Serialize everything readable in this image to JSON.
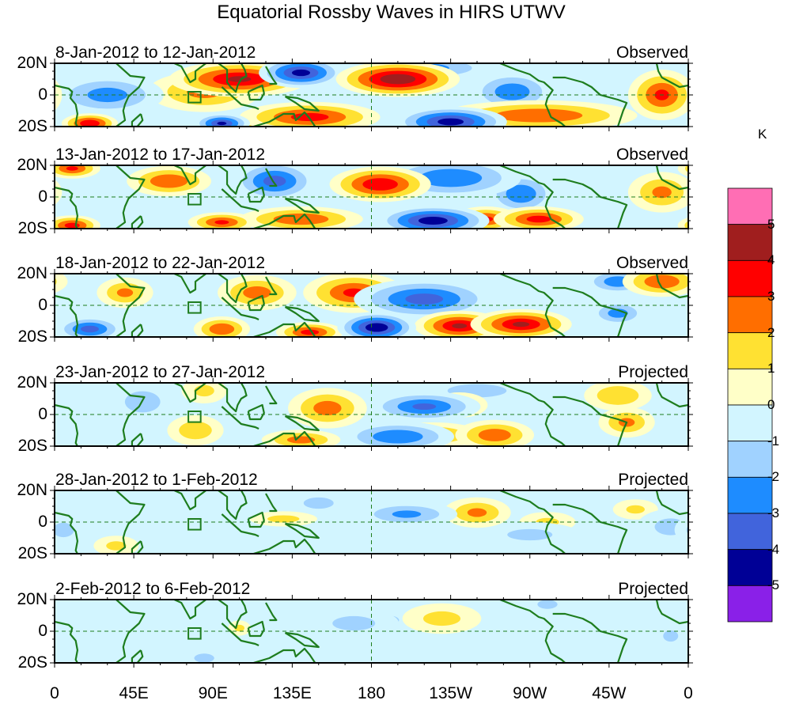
{
  "chart_data": {
    "type": "heatmap",
    "title": "Equatorial Rossby Waves in HIRS UTWV",
    "colorbar": {
      "unit": "K",
      "levels": [
        -5,
        -4,
        -3,
        -2,
        -1,
        0,
        1,
        2,
        3,
        4,
        5
      ],
      "colors": [
        "#8a20e8",
        "#000096",
        "#4164dc",
        "#1e8cff",
        "#a0d2ff",
        "#d2f5ff",
        "#ffffc8",
        "#ffe132",
        "#ff6e00",
        "#ff0000",
        "#a01e1e",
        "#ff6eb4"
      ],
      "tick_labels": [
        "5",
        "4",
        "3",
        "2",
        "1",
        "0",
        "-1",
        "-2",
        "-3",
        "-4",
        "-5"
      ]
    },
    "x_ticks": [
      "0",
      "45E",
      "90E",
      "135E",
      "180",
      "135W",
      "90W",
      "45W",
      "0"
    ],
    "x_range_deg": [
      0,
      360
    ],
    "y_ticks": [
      "20N",
      "0",
      "20S"
    ],
    "y_range_deg": [
      -20,
      20
    ],
    "overlays": [
      "coastlines",
      "equator dashed line",
      "180 meridian dashed line",
      "box near 80E"
    ],
    "line_color": "#1e7d1e",
    "panels": [
      {
        "period": "8-Jan-2012 to 12-Jan-2012",
        "kind": "Observed",
        "anomalies": [
          {
            "lon": 105,
            "lat": 10,
            "value": 4.2,
            "rx": 25,
            "ry": 7
          },
          {
            "lon": 85,
            "lat": 2,
            "value": 2.3,
            "rx": 20,
            "ry": 8
          },
          {
            "lon": 195,
            "lat": 10,
            "value": 5.0,
            "rx": 22,
            "ry": 7
          },
          {
            "lon": 140,
            "lat": 14,
            "value": -4.5,
            "rx": 15,
            "ry": 6
          },
          {
            "lon": 30,
            "lat": 0,
            "value": -2.5,
            "rx": 20,
            "ry": 8
          },
          {
            "lon": 145,
            "lat": -14,
            "value": 3.5,
            "rx": 25,
            "ry": 6
          },
          {
            "lon": 345,
            "lat": 0,
            "value": 3.2,
            "rx": 12,
            "ry": 10
          },
          {
            "lon": 275,
            "lat": -13,
            "value": 3.0,
            "rx": 35,
            "ry": 6
          },
          {
            "lon": 225,
            "lat": -17,
            "value": -4.6,
            "rx": 20,
            "ry": 6
          },
          {
            "lon": 260,
            "lat": 2,
            "value": -2.8,
            "rx": 15,
            "ry": 8
          },
          {
            "lon": 95,
            "lat": -18,
            "value": -4.2,
            "rx": 10,
            "ry": 4
          },
          {
            "lon": 20,
            "lat": -18,
            "value": 4.0,
            "rx": 10,
            "ry": 4
          },
          {
            "lon": 120,
            "lat": -18,
            "value": 3.0,
            "rx": 10,
            "ry": 4
          },
          {
            "lon": 210,
            "lat": 17,
            "value": -2.5,
            "rx": 25,
            "ry": 5
          }
        ]
      },
      {
        "period": "13-Jan-2012 to 17-Jan-2012",
        "kind": "Observed",
        "anomalies": [
          {
            "lon": 185,
            "lat": 8,
            "value": 4.0,
            "rx": 18,
            "ry": 7
          },
          {
            "lon": 65,
            "lat": 10,
            "value": 3.0,
            "rx": 15,
            "ry": 6
          },
          {
            "lon": 125,
            "lat": 10,
            "value": -3.5,
            "rx": 15,
            "ry": 8
          },
          {
            "lon": 215,
            "lat": -15,
            "value": -4.8,
            "rx": 20,
            "ry": 6
          },
          {
            "lon": 245,
            "lat": -14,
            "value": 3.2,
            "rx": 12,
            "ry": 5
          },
          {
            "lon": 275,
            "lat": -14,
            "value": 3.5,
            "rx": 16,
            "ry": 5
          },
          {
            "lon": 265,
            "lat": 2,
            "value": -3.0,
            "rx": 12,
            "ry": 8
          },
          {
            "lon": 140,
            "lat": -14,
            "value": 3.0,
            "rx": 22,
            "ry": 5
          },
          {
            "lon": 95,
            "lat": -16,
            "value": 3.2,
            "rx": 12,
            "ry": 4
          },
          {
            "lon": 225,
            "lat": 12,
            "value": -3.0,
            "rx": 25,
            "ry": 8
          },
          {
            "lon": 345,
            "lat": 3,
            "value": 2.2,
            "rx": 12,
            "ry": 8
          },
          {
            "lon": 10,
            "lat": -18,
            "value": 3.5,
            "rx": 10,
            "ry": 4
          },
          {
            "lon": 10,
            "lat": 18,
            "value": 3.2,
            "rx": 10,
            "ry": 4
          }
        ]
      },
      {
        "period": "18-Jan-2012 to 22-Jan-2012",
        "kind": "Observed",
        "anomalies": [
          {
            "lon": 170,
            "lat": 8,
            "value": 3.2,
            "rx": 18,
            "ry": 8
          },
          {
            "lon": 115,
            "lat": 8,
            "value": 2.5,
            "rx": 14,
            "ry": 7
          },
          {
            "lon": 183,
            "lat": -14,
            "value": -5.0,
            "rx": 14,
            "ry": 6
          },
          {
            "lon": 230,
            "lat": -13,
            "value": 4.2,
            "rx": 16,
            "ry": 6
          },
          {
            "lon": 265,
            "lat": -12,
            "value": 4.2,
            "rx": 18,
            "ry": 6
          },
          {
            "lon": 210,
            "lat": 4,
            "value": -3.5,
            "rx": 25,
            "ry": 8
          },
          {
            "lon": 95,
            "lat": -15,
            "value": 3.0,
            "rx": 10,
            "ry": 5
          },
          {
            "lon": 145,
            "lat": -17,
            "value": 3.5,
            "rx": 12,
            "ry": 4
          },
          {
            "lon": 40,
            "lat": 8,
            "value": 2.2,
            "rx": 10,
            "ry": 6
          },
          {
            "lon": 20,
            "lat": -15,
            "value": -3.5,
            "rx": 12,
            "ry": 5
          },
          {
            "lon": 345,
            "lat": 15,
            "value": 3.0,
            "rx": 14,
            "ry": 6
          },
          {
            "lon": 320,
            "lat": 15,
            "value": -2.8,
            "rx": 12,
            "ry": 5
          },
          {
            "lon": 320,
            "lat": -5,
            "value": -2.5,
            "rx": 10,
            "ry": 5
          }
        ]
      },
      {
        "period": "23-Jan-2012 to 27-Jan-2012",
        "kind": "Projected",
        "anomalies": [
          {
            "lon": 155,
            "lat": 4,
            "value": 2.5,
            "rx": 14,
            "ry": 8
          },
          {
            "lon": 210,
            "lat": 5,
            "value": -3.2,
            "rx": 20,
            "ry": 6
          },
          {
            "lon": 195,
            "lat": -14,
            "value": -3.0,
            "rx": 20,
            "ry": 6
          },
          {
            "lon": 215,
            "lat": -13,
            "value": 2.2,
            "rx": 18,
            "ry": 5
          },
          {
            "lon": 250,
            "lat": -13,
            "value": 2.8,
            "rx": 14,
            "ry": 6
          },
          {
            "lon": 230,
            "lat": 6,
            "value": 2.0,
            "rx": 10,
            "ry": 5
          },
          {
            "lon": 320,
            "lat": 12,
            "value": 2.0,
            "rx": 12,
            "ry": 6
          },
          {
            "lon": 325,
            "lat": -5,
            "value": 2.2,
            "rx": 10,
            "ry": 6
          },
          {
            "lon": 140,
            "lat": -16,
            "value": 2.5,
            "rx": 14,
            "ry": 4
          },
          {
            "lon": 80,
            "lat": -10,
            "value": 1.8,
            "rx": 10,
            "ry": 6
          },
          {
            "lon": 85,
            "lat": 15,
            "value": 1.2,
            "rx": 8,
            "ry": 5
          },
          {
            "lon": 50,
            "lat": 8,
            "value": -1.5,
            "rx": 12,
            "ry": 8
          },
          {
            "lon": 240,
            "lat": 15,
            "value": -1.5,
            "rx": 20,
            "ry": 5
          }
        ]
      },
      {
        "period": "28-Jan-2012 to 1-Feb-2012",
        "kind": "Projected",
        "anomalies": [
          {
            "lon": 240,
            "lat": 6,
            "value": 2.2,
            "rx": 12,
            "ry": 6
          },
          {
            "lon": 200,
            "lat": 5,
            "value": -2.2,
            "rx": 18,
            "ry": 5
          },
          {
            "lon": 130,
            "lat": 2,
            "value": 1.3,
            "rx": 12,
            "ry": 3
          },
          {
            "lon": 35,
            "lat": -15,
            "value": 1.2,
            "rx": 8,
            "ry": 4
          },
          {
            "lon": 280,
            "lat": 0,
            "value": 1.1,
            "rx": 10,
            "ry": 4
          },
          {
            "lon": 270,
            "lat": -8,
            "value": -1.2,
            "rx": 18,
            "ry": 5
          },
          {
            "lon": 350,
            "lat": -3,
            "value": -1.3,
            "rx": 12,
            "ry": 7
          },
          {
            "lon": 5,
            "lat": -5,
            "value": -1.3,
            "rx": 8,
            "ry": 6
          },
          {
            "lon": 330,
            "lat": 8,
            "value": 1.1,
            "rx": 8,
            "ry": 4
          },
          {
            "lon": 150,
            "lat": 12,
            "value": -1.2,
            "rx": 12,
            "ry": 5
          }
        ]
      },
      {
        "period": "2-Feb-2012 to 6-Feb-2012",
        "kind": "Projected",
        "anomalies": [
          {
            "lon": 220,
            "lat": 8,
            "value": 1.3,
            "rx": 14,
            "ry": 6
          },
          {
            "lon": 170,
            "lat": 5,
            "value": -1.3,
            "rx": 16,
            "ry": 6
          },
          {
            "lon": 105,
            "lat": 2,
            "value": 1.2,
            "rx": 4,
            "ry": 3
          },
          {
            "lon": 190,
            "lat": 7,
            "value": -1.2,
            "rx": 8,
            "ry": 4
          },
          {
            "lon": 350,
            "lat": -3,
            "value": -1.2,
            "rx": 6,
            "ry": 5
          },
          {
            "lon": 85,
            "lat": -17,
            "value": -1.2,
            "rx": 8,
            "ry": 4
          },
          {
            "lon": 280,
            "lat": 17,
            "value": -1.2,
            "rx": 8,
            "ry": 4
          }
        ]
      }
    ]
  }
}
